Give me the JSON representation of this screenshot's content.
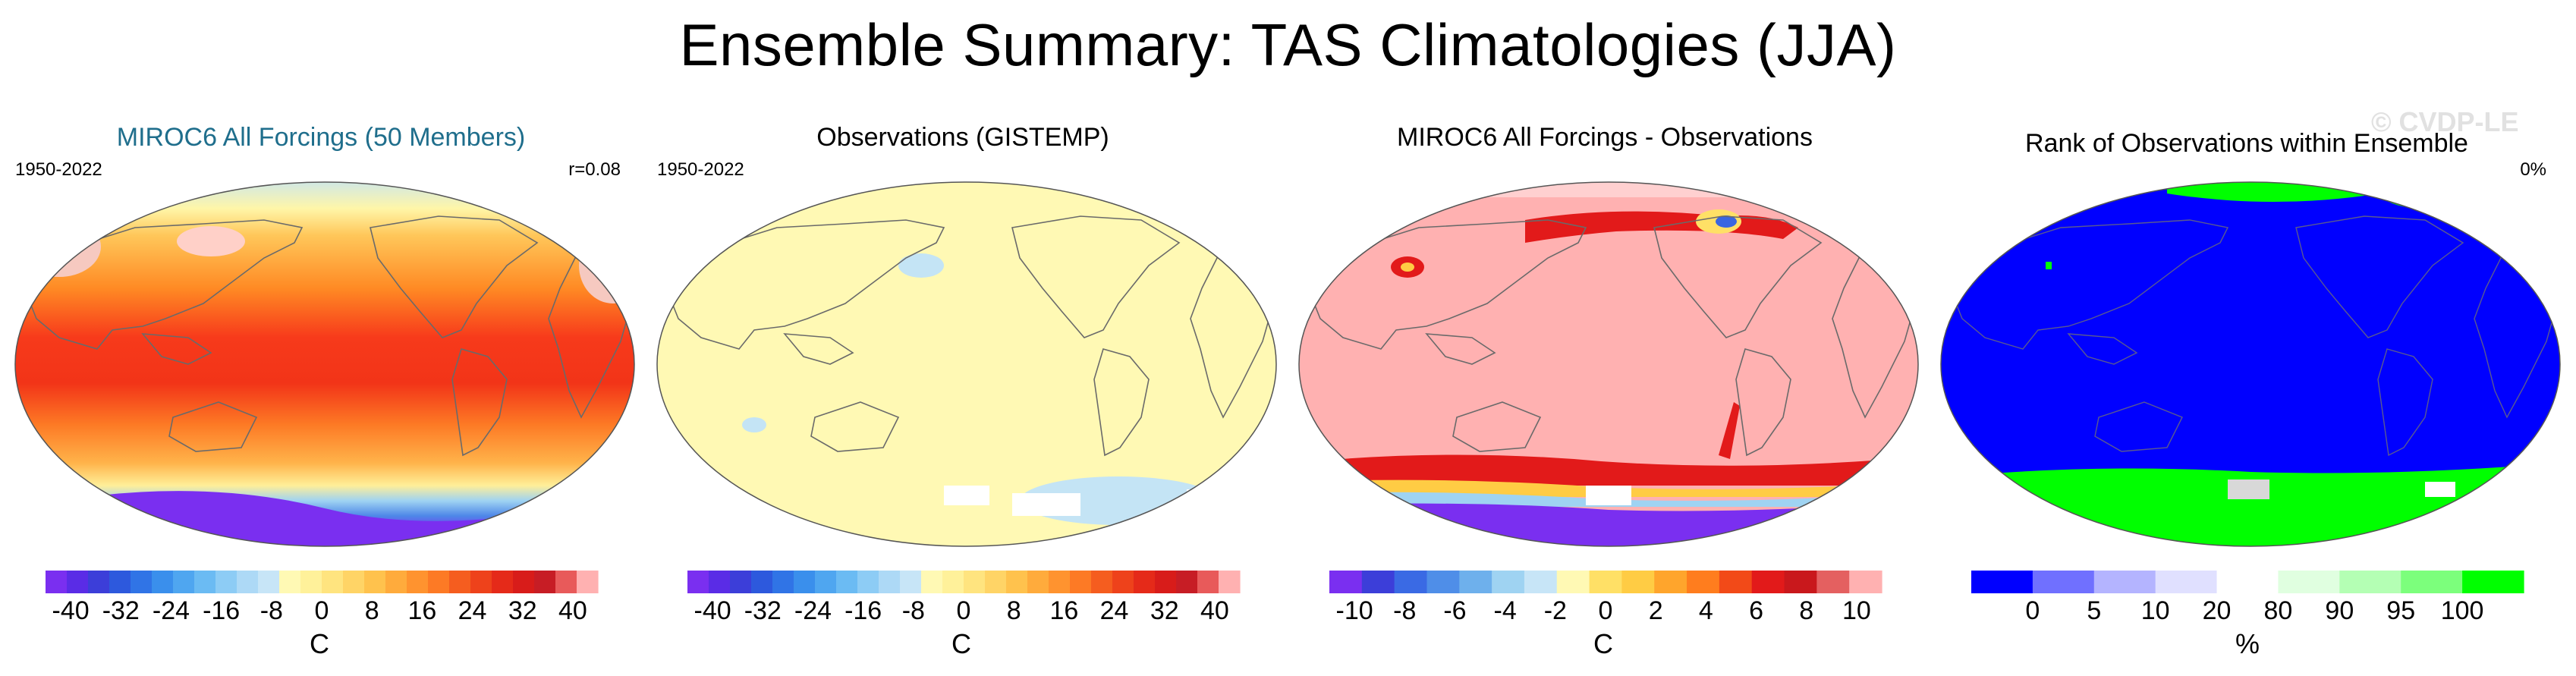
{
  "figure": {
    "title": "Ensemble Summary: TAS Climatologies (JJA)",
    "watermark": "© CVDP-LE"
  },
  "chart_data": [
    {
      "type": "heatmap",
      "title": "MIROC6 All Forcings (50 Members)",
      "title_color": "#1f6e8c",
      "period": "1950-2022",
      "stat": "r=0.08",
      "projection": "Robinson (Pacific-centered)",
      "colorbar": {
        "unit": "C",
        "tick_labels": [
          "-40",
          "-32",
          "-24",
          "-16",
          "-8",
          "0",
          "8",
          "16",
          "24",
          "32",
          "40"
        ],
        "ticks": [
          -40,
          -32,
          -24,
          -16,
          -8,
          0,
          8,
          16,
          24,
          32,
          40
        ],
        "range": [
          -44,
          44
        ]
      }
    },
    {
      "type": "heatmap",
      "title": "Observations (GISTEMP)",
      "title_color": "#000000",
      "period": "1950-2022",
      "stat": "",
      "projection": "Robinson (Pacific-centered)",
      "colorbar": {
        "unit": "C",
        "tick_labels": [
          "-40",
          "-32",
          "-24",
          "-16",
          "-8",
          "0",
          "8",
          "16",
          "24",
          "32",
          "40"
        ],
        "ticks": [
          -40,
          -32,
          -24,
          -16,
          -8,
          0,
          8,
          16,
          24,
          32,
          40
        ],
        "range": [
          -44,
          44
        ]
      }
    },
    {
      "type": "heatmap",
      "title": "MIROC6 All Forcings - Observations",
      "title_color": "#000000",
      "period": "",
      "stat": "",
      "projection": "Robinson (Pacific-centered)",
      "colorbar": {
        "unit": "C",
        "tick_labels": [
          "-10",
          "-8",
          "-6",
          "-4",
          "-2",
          "0",
          "2",
          "4",
          "6",
          "8",
          "10"
        ],
        "ticks": [
          -10,
          -8,
          -6,
          -4,
          -2,
          0,
          2,
          4,
          6,
          8,
          10
        ],
        "range": [
          -11,
          11
        ]
      }
    },
    {
      "type": "heatmap",
      "title": "Rank of Observations within Ensemble",
      "title_color": "#000000",
      "period": "",
      "stat": "0%",
      "projection": "Robinson (Pacific-centered)",
      "colorbar": {
        "unit": "%",
        "tick_labels": [
          "0",
          "5",
          "10",
          "20",
          "80",
          "90",
          "95",
          "100"
        ],
        "ticks": [
          0,
          5,
          10,
          20,
          80,
          90,
          95,
          100
        ],
        "categories": [
          "<0",
          "0-5",
          "5-10",
          "10-20",
          "20-80",
          "80-90",
          "90-95",
          "95-100",
          ">100"
        ],
        "colors": [
          "#0000ff",
          "#7070ff",
          "#b4b4ff",
          "#e0e0ff",
          "#ffffff",
          "#e0ffe0",
          "#b4ffb4",
          "#7cff7c",
          "#00ff00"
        ]
      }
    }
  ]
}
